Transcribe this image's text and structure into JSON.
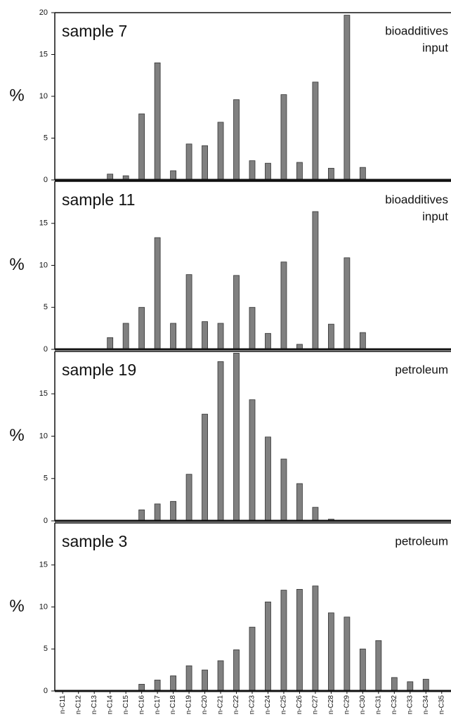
{
  "chart_data": [
    {
      "type": "bar",
      "title": "sample 7",
      "annotation": [
        "bioadditives",
        "input"
      ],
      "ylabel": "%",
      "color": "#808080",
      "values": [
        0,
        0,
        0,
        0.7,
        0.5,
        7.9,
        14.0,
        1.1,
        4.3,
        4.1,
        6.9,
        9.6,
        2.3,
        2.0,
        10.2,
        2.1,
        11.7,
        1.4,
        19.7,
        1.5,
        0,
        0,
        0,
        0,
        0
      ],
      "ylim": [
        0,
        20
      ],
      "yticks": [
        0,
        5,
        10,
        15,
        20
      ]
    },
    {
      "type": "bar",
      "title": "sample 11",
      "annotation": [
        "bioadditives",
        "input"
      ],
      "ylabel": "%",
      "color": "#808080",
      "values": [
        0,
        0,
        0,
        1.4,
        3.1,
        5.0,
        13.3,
        3.1,
        8.9,
        3.3,
        3.1,
        8.8,
        5.0,
        1.9,
        10.4,
        0.6,
        16.4,
        3.0,
        10.9,
        2.0,
        0,
        0,
        0,
        0,
        0
      ],
      "ylim": [
        0,
        20
      ],
      "yticks": [
        0,
        5,
        10,
        15
      ]
    },
    {
      "type": "bar",
      "title": "sample 19",
      "annotation": [
        "petroleum"
      ],
      "ylabel": "%",
      "color": "#808080",
      "values": [
        0,
        0,
        0,
        0,
        0,
        1.3,
        2.0,
        2.3,
        5.5,
        12.6,
        18.8,
        19.8,
        14.3,
        9.9,
        7.3,
        4.4,
        1.6,
        0.2,
        0,
        0,
        0,
        0,
        0,
        0,
        0
      ],
      "ylim": [
        0,
        20
      ],
      "yticks": [
        0,
        5,
        10,
        15
      ]
    },
    {
      "type": "bar",
      "title": "sample 3",
      "annotation": [
        "petroleum"
      ],
      "ylabel": "%",
      "color": "#808080",
      "categories": [
        "n-C11",
        "n-C12",
        "n-C13",
        "n-C14",
        "n-C15",
        "n-C16",
        "n-C17",
        "n-C18",
        "n-C19",
        "n-C20",
        "n-C21",
        "n-C22",
        "n-C23",
        "n-C24",
        "n-C25",
        "n-C26",
        "n-C27",
        "n-C28",
        "n-C29",
        "n-C30",
        "n-C31",
        "n-C32",
        "n-C33",
        "n-C34",
        "n-C35"
      ],
      "values": [
        0,
        0,
        0,
        0,
        0,
        0.8,
        1.3,
        1.8,
        3.0,
        2.5,
        3.6,
        4.9,
        7.6,
        10.6,
        12.0,
        12.1,
        12.5,
        9.3,
        8.8,
        5.0,
        6.0,
        1.6,
        1.1,
        1.4,
        0
      ],
      "ylim": [
        0,
        20
      ],
      "yticks": [
        0,
        5,
        10,
        15
      ]
    }
  ]
}
